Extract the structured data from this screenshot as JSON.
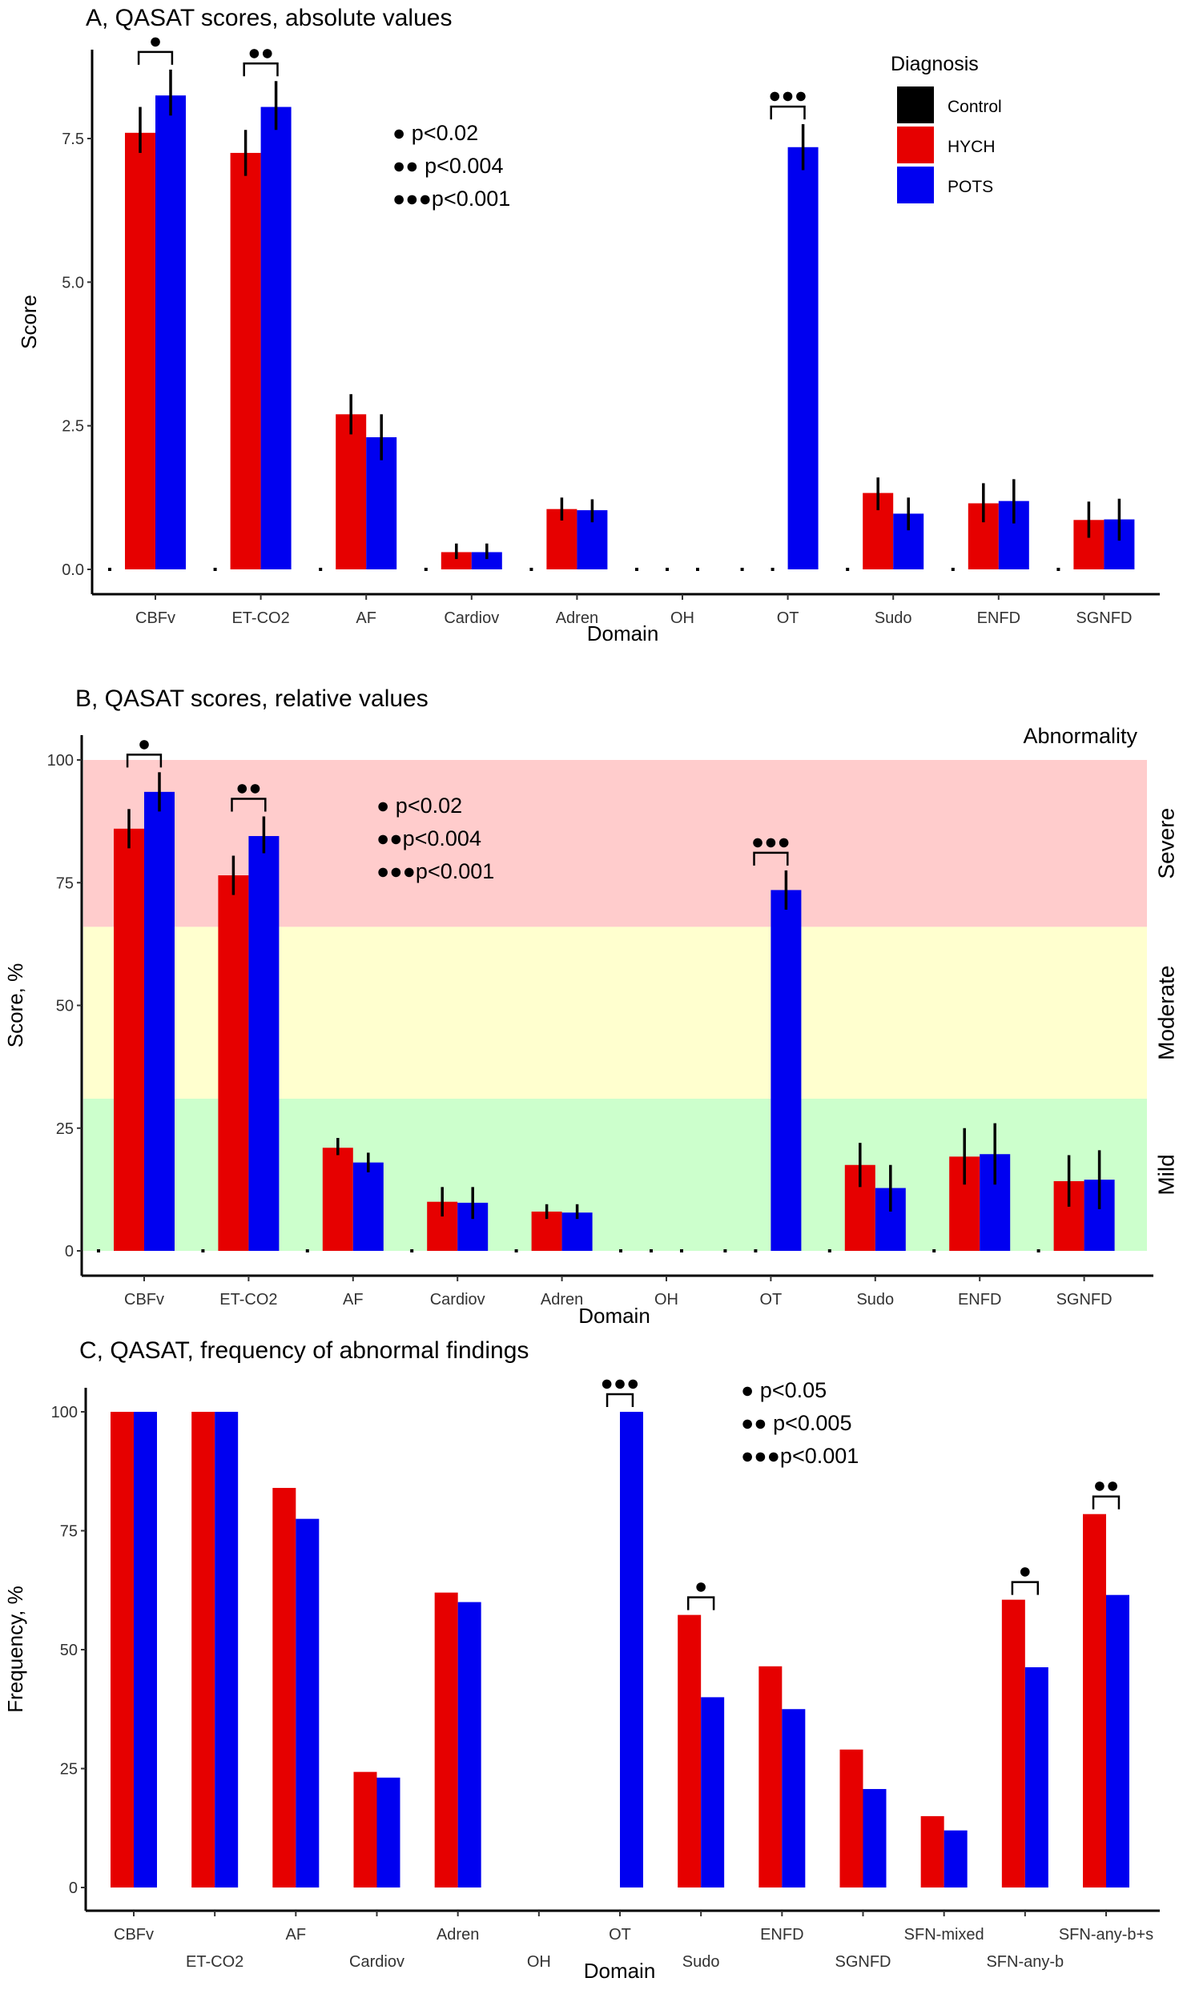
{
  "colors": {
    "Control": "#000000",
    "HYCH": "#e60000",
    "POTS": "#0000f0",
    "severe": "#ffcccc",
    "moderate": "#ffffcf",
    "mild": "#ccffcc"
  },
  "legend": {
    "title": "Diagnosis",
    "items": [
      "Control",
      "HYCH",
      "POTS"
    ]
  },
  "chart_data": [
    {
      "type": "bar",
      "title": "A, QASAT scores, absolute values",
      "xlabel": "Domain",
      "ylabel": "Score",
      "ylim": [
        0,
        8.9
      ],
      "yticks": [
        "0.0",
        "2.5",
        "5.0",
        "7.5"
      ],
      "categories": [
        "CBFv",
        "ET-CO2",
        "AF",
        "Cardiov",
        "Adren",
        "OH",
        "OT",
        "Sudo",
        "ENFD",
        "SGNFD"
      ],
      "series": [
        {
          "name": "Control",
          "values": [
            0,
            0,
            0,
            0,
            0,
            0,
            0,
            0,
            0,
            0
          ]
        },
        {
          "name": "HYCH",
          "values": [
            7.6,
            7.25,
            2.7,
            0.3,
            1.05,
            0,
            0,
            1.33,
            1.15,
            0.86
          ],
          "err_low": [
            7.25,
            6.85,
            2.35,
            0.18,
            0.85,
            0,
            0,
            1.03,
            0.82,
            0.55
          ],
          "err_high": [
            8.05,
            7.65,
            3.05,
            0.45,
            1.25,
            0,
            0,
            1.6,
            1.5,
            1.18
          ]
        },
        {
          "name": "POTS",
          "values": [
            8.25,
            8.05,
            2.3,
            0.3,
            1.03,
            0,
            7.35,
            0.97,
            1.19,
            0.87
          ],
          "err_low": [
            7.9,
            7.65,
            1.9,
            0.18,
            0.82,
            0,
            6.95,
            0.68,
            0.8,
            0.5
          ],
          "err_high": [
            8.7,
            8.5,
            2.7,
            0.45,
            1.22,
            0,
            7.75,
            1.25,
            1.57,
            1.23
          ]
        }
      ],
      "significance": [
        {
          "category": "CBFv",
          "marks": "●"
        },
        {
          "category": "ET-CO2",
          "marks": "●●"
        },
        {
          "category": "OT",
          "marks": "●●●"
        }
      ],
      "sig_legend": [
        "● p<0.02",
        "●● p<0.004",
        "●●●p<0.001"
      ]
    },
    {
      "type": "bar",
      "title": "B, QASAT scores, relative values",
      "xlabel": "Domain",
      "ylabel": "Score, %",
      "ylim": [
        0,
        100
      ],
      "yticks": [
        "0",
        "25",
        "50",
        "75",
        "100"
      ],
      "categories": [
        "CBFv",
        "ET-CO2",
        "AF",
        "Cardiov",
        "Adren",
        "OH",
        "OT",
        "Sudo",
        "ENFD",
        "SGNFD"
      ],
      "series": [
        {
          "name": "Control",
          "values": [
            0,
            0,
            0,
            0,
            0,
            0,
            0,
            0,
            0,
            0
          ]
        },
        {
          "name": "HYCH",
          "values": [
            86,
            76.5,
            21,
            10,
            8,
            0,
            0,
            17.5,
            19.2,
            14.2
          ],
          "err_low": [
            82,
            72.5,
            19.5,
            7,
            6.5,
            0,
            0,
            13,
            13.5,
            9
          ],
          "err_high": [
            90,
            80.5,
            23,
            13,
            9.5,
            0,
            0,
            22,
            25,
            19.5
          ]
        },
        {
          "name": "POTS",
          "values": [
            93.5,
            84.5,
            18,
            9.8,
            7.8,
            0,
            73.5,
            12.8,
            19.7,
            14.5
          ],
          "err_low": [
            89.5,
            81,
            16,
            6.5,
            6.5,
            0,
            69.5,
            8,
            13.5,
            8.5
          ],
          "err_high": [
            97.5,
            88.5,
            20,
            13,
            9.5,
            0,
            77.5,
            17.5,
            26,
            20.5
          ]
        }
      ],
      "bands": [
        {
          "label": "Severe",
          "range": [
            66,
            100
          ]
        },
        {
          "label": "Moderate",
          "range": [
            31,
            66
          ]
        },
        {
          "label": "Mild",
          "range": [
            0,
            31
          ]
        }
      ],
      "band_title": "Abnormality",
      "significance": [
        {
          "category": "CBFv",
          "marks": "●"
        },
        {
          "category": "ET-CO2",
          "marks": "●●"
        },
        {
          "category": "OT",
          "marks": "●●●"
        }
      ],
      "sig_legend": [
        "● p<0.02",
        "●●p<0.004",
        "●●●p<0.001"
      ]
    },
    {
      "type": "bar",
      "title": "C, QASAT, frequency of abnormal findings",
      "xlabel": "Domain",
      "ylabel": "Frequency, %",
      "ylim": [
        0,
        100
      ],
      "yticks": [
        "0",
        "25",
        "50",
        "75",
        "100"
      ],
      "categories": [
        "CBFv",
        "ET-CO2",
        "AF",
        "Cardiov",
        "Adren",
        "OH",
        "OT",
        "Sudo",
        "ENFD",
        "SGNFD",
        "SFN-mixed",
        "SFN-any-b",
        "SFN-any-b+s"
      ],
      "series": [
        {
          "name": "HYCH",
          "values": [
            100,
            100,
            84,
            24.3,
            62,
            0,
            0,
            57.3,
            46.5,
            29,
            15,
            60.5,
            78.5
          ]
        },
        {
          "name": "POTS",
          "values": [
            100,
            100,
            77.5,
            23.1,
            60,
            0,
            100,
            40,
            37.5,
            20.7,
            12,
            46.3,
            61.5
          ]
        }
      ],
      "significance": [
        {
          "category": "OT",
          "marks": "●●●"
        },
        {
          "category": "Sudo",
          "marks": "●"
        },
        {
          "category": "SFN-any-b",
          "marks": "●"
        },
        {
          "category": "SFN-any-b+s",
          "marks": "●●"
        }
      ],
      "sig_legend": [
        "● p<0.05",
        "●● p<0.005",
        "●●●p<0.001"
      ]
    }
  ]
}
